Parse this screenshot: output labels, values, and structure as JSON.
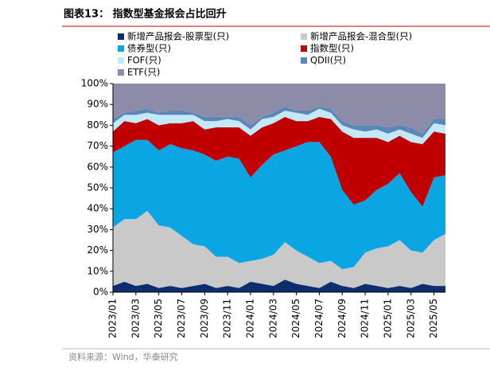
{
  "chart_data": {
    "type": "stacked_area",
    "title": "图表13：  指数型基金报会占比回升",
    "source": "资料来源：Wind，华泰研究",
    "categories": [
      "2023/01",
      null,
      "2023/03",
      null,
      "2023/05",
      null,
      "2023/07",
      null,
      "2023/09",
      null,
      "2023/11",
      null,
      "2024/01",
      null,
      "2024/03",
      null,
      "2024/05",
      null,
      "2024/07",
      null,
      "2024/09",
      null,
      "2024/11",
      null,
      "2025/01",
      null,
      "2025/03",
      null,
      "2025/05",
      null
    ],
    "series": [
      {
        "name": "新增产品报会-股票型(只)",
        "color": "#0d2d6c",
        "values": [
          3,
          5,
          3,
          4,
          2,
          3,
          2,
          3,
          4,
          2,
          3,
          2,
          5,
          4,
          3,
          6,
          4,
          3,
          2,
          5,
          3,
          2,
          4,
          3,
          2,
          3,
          2,
          4,
          3,
          3
        ]
      },
      {
        "name": "新增产品报会-混合型(只)",
        "color": "#c9c9c9",
        "values": [
          28,
          30,
          32,
          35,
          30,
          28,
          25,
          20,
          18,
          15,
          14,
          12,
          10,
          12,
          15,
          18,
          16,
          14,
          12,
          10,
          8,
          10,
          15,
          18,
          20,
          22,
          18,
          15,
          22,
          25
        ]
      },
      {
        "name": "债券型(只)",
        "color": "#0aa5e3",
        "values": [
          36,
          35,
          38,
          34,
          36,
          40,
          42,
          45,
          44,
          46,
          48,
          50,
          40,
          45,
          48,
          44,
          50,
          55,
          58,
          50,
          38,
          30,
          25,
          28,
          30,
          32,
          28,
          22,
          30,
          28
        ]
      },
      {
        "name": "指数型(只)",
        "color": "#c00000",
        "values": [
          10,
          12,
          8,
          10,
          12,
          10,
          12,
          14,
          12,
          16,
          14,
          15,
          20,
          18,
          15,
          16,
          12,
          10,
          12,
          18,
          28,
          32,
          30,
          25,
          20,
          18,
          24,
          30,
          22,
          20
        ]
      },
      {
        "name": "FOF(只)",
        "color": "#c3e8f8",
        "values": [
          4,
          3,
          4,
          3,
          5,
          4,
          4,
          3,
          4,
          3,
          4,
          3,
          3,
          4,
          3,
          3,
          4,
          3,
          4,
          3,
          3,
          4,
          3,
          4,
          4,
          3,
          4,
          3,
          4,
          4
        ]
      },
      {
        "name": "QDII(只)",
        "color": "#5b86b8",
        "values": [
          2,
          1,
          2,
          2,
          1,
          2,
          2,
          1,
          2,
          2,
          1,
          2,
          2,
          1,
          2,
          2,
          1,
          2,
          1,
          2,
          2,
          2,
          3,
          2,
          3,
          2,
          3,
          2,
          2,
          3
        ]
      },
      {
        "name": "ETF(只)",
        "color": "#8c8ca8",
        "values": [
          17,
          14,
          13,
          12,
          14,
          13,
          13,
          14,
          16,
          16,
          16,
          16,
          20,
          16,
          14,
          11,
          13,
          13,
          11,
          12,
          18,
          20,
          20,
          20,
          21,
          20,
          21,
          24,
          17,
          17
        ]
      }
    ],
    "ylim": [
      0,
      100
    ],
    "yticks": [
      {
        "value": 0,
        "label": "0%"
      },
      {
        "value": 10,
        "label": "10%"
      },
      {
        "value": 20,
        "label": "20%"
      },
      {
        "value": 30,
        "label": "30%"
      },
      {
        "value": 40,
        "label": "40%"
      },
      {
        "value": 50,
        "label": "50%"
      },
      {
        "value": 60,
        "label": "60%"
      },
      {
        "value": 70,
        "label": "70%"
      },
      {
        "value": 80,
        "label": "80%"
      },
      {
        "value": 90,
        "label": "90%"
      },
      {
        "value": 100,
        "label": "100%"
      }
    ]
  }
}
